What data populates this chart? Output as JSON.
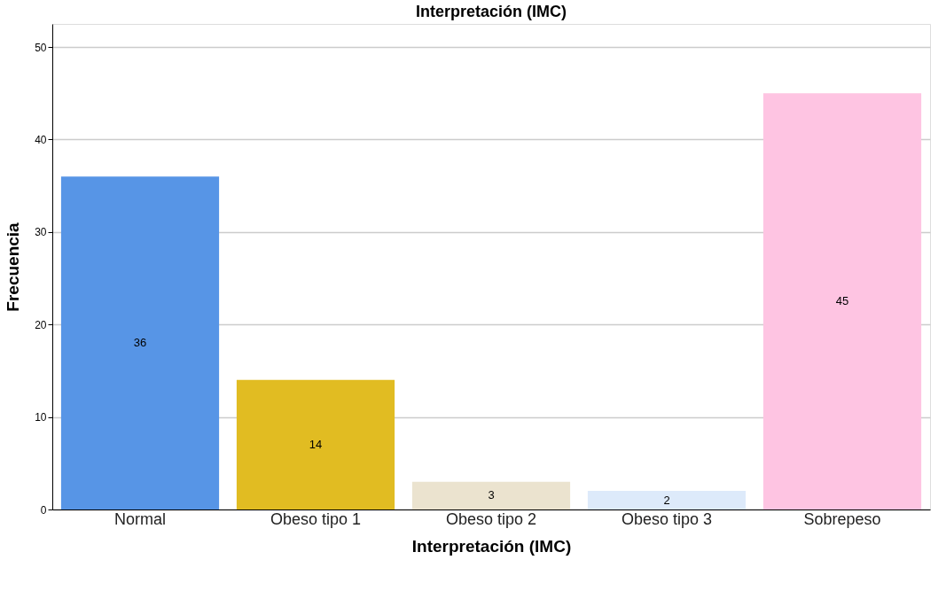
{
  "chart_data": {
    "type": "bar",
    "title": "Interpretación (IMC)",
    "xlabel": "Interpretación (IMC)",
    "ylabel": "Frecuencia",
    "categories": [
      "Normal",
      "Obeso tipo 1",
      "Obeso tipo 2",
      "Obeso tipo 3",
      "Sobrepeso"
    ],
    "values": [
      36,
      14,
      3,
      2,
      45
    ],
    "colors": [
      "#5795e6",
      "#e1bc22",
      "#ebe3cf",
      "#ddeafa",
      "#fec4e2"
    ],
    "ylim": [
      0,
      52.5
    ],
    "yticks": [
      0,
      10,
      20,
      30,
      40,
      50
    ],
    "grid": "y",
    "data_labels": true
  }
}
